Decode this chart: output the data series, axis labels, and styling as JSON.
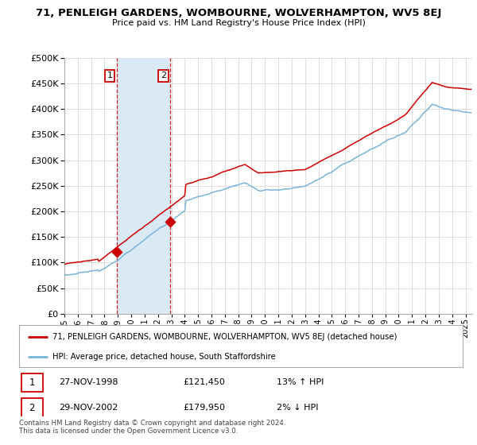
{
  "title": "71, PENLEIGH GARDENS, WOMBOURNE, WOLVERHAMPTON, WV5 8EJ",
  "subtitle": "Price paid vs. HM Land Registry's House Price Index (HPI)",
  "legend_line1": "71, PENLEIGH GARDENS, WOMBOURNE, WOLVERHAMPTON, WV5 8EJ (detached house)",
  "legend_line2": "HPI: Average price, detached house, South Staffordshire",
  "sale1_date": "27-NOV-1998",
  "sale1_price": 121450,
  "sale1_label": "13% ↑ HPI",
  "sale2_date": "29-NOV-2002",
  "sale2_price": 179950,
  "sale2_label": "2% ↓ HPI",
  "footer": "Contains HM Land Registry data © Crown copyright and database right 2024.\nThis data is licensed under the Open Government Licence v3.0.",
  "hpi_color": "#7ab4d8",
  "price_color": "#cc0000",
  "shade_color": "#daeaf5",
  "box_color": "#cc0000",
  "ylim": [
    0,
    500000
  ],
  "yticks": [
    0,
    50000,
    100000,
    150000,
    200000,
    250000,
    300000,
    350000,
    400000,
    450000,
    500000
  ],
  "sale1_x": 1998.9,
  "sale2_x": 2002.9
}
